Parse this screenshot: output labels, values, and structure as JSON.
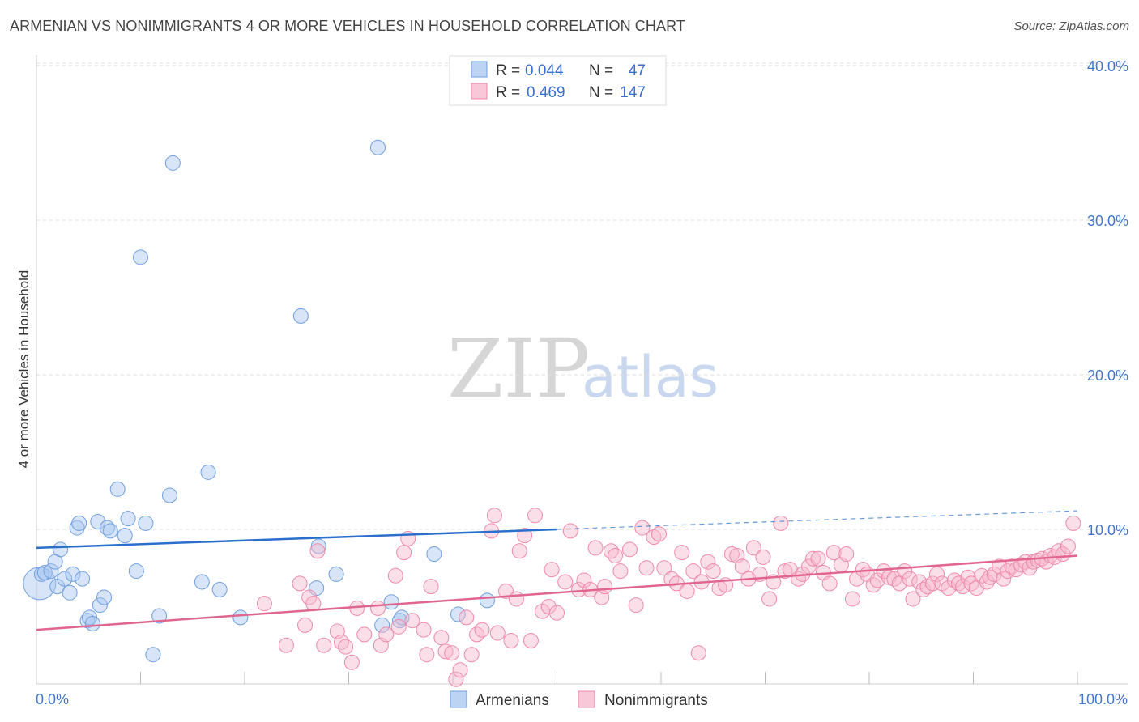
{
  "header": {
    "title": "ARMENIAN VS NONIMMIGRANTS 4 OR MORE VEHICLES IN HOUSEHOLD CORRELATION CHART",
    "source": "Source: ZipAtlas.com"
  },
  "watermark": {
    "zip": "ZIP",
    "atlas": "atlas"
  },
  "legend": {
    "rows": [
      {
        "r_label": "R =",
        "r_value": "0.044",
        "n_label": "N =",
        "n_value": "47"
      },
      {
        "r_label": "R =",
        "r_value": "0.469",
        "n_label": "N =",
        "n_value": "147"
      }
    ]
  },
  "bottom_legend": {
    "items": [
      "Armenians",
      "Nonimmigrants"
    ]
  },
  "chart_data": {
    "type": "scatter",
    "title": "ARMENIAN VS NONIMMIGRANTS 4 OR MORE VEHICLES IN HOUSEHOLD CORRELATION CHART",
    "xlabel": "",
    "ylabel": "4 or more Vehicles in Household",
    "xlim": [
      0,
      100
    ],
    "ylim": [
      0,
      40
    ],
    "x_tick_labels": [
      "0.0%",
      "100.0%"
    ],
    "y_ticks": [
      {
        "value": 10,
        "label": "10.0%"
      },
      {
        "value": 20,
        "label": "20.0%"
      },
      {
        "value": 30,
        "label": "30.0%"
      },
      {
        "value": 40,
        "label": "40.0%"
      }
    ],
    "grid": true,
    "legend_position": "top-center",
    "colors": {
      "armenians": "#6f9fdf",
      "nonimmigrants": "#ee88aa",
      "armenians_line": "#2a6fcc",
      "nonimmigrants_line": "#e06690"
    },
    "series": [
      {
        "name": "Armenians",
        "r": 0.044,
        "n": 47,
        "trend": {
          "x0": 0,
          "y0": 8.8,
          "x1": 50,
          "y1": 10.0,
          "dashed_to": 100,
          "dashed_y": 11.2
        },
        "points": [
          [
            0.3,
            6.5
          ],
          [
            0.5,
            7.1
          ],
          [
            0.8,
            7.2
          ],
          [
            1.4,
            7.3
          ],
          [
            1.8,
            7.9
          ],
          [
            2.0,
            6.3
          ],
          [
            2.3,
            8.7
          ],
          [
            2.7,
            6.8
          ],
          [
            3.2,
            5.9
          ],
          [
            3.5,
            7.1
          ],
          [
            3.9,
            10.1
          ],
          [
            4.1,
            10.4
          ],
          [
            4.4,
            6.8
          ],
          [
            4.9,
            4.1
          ],
          [
            5.1,
            4.3
          ],
          [
            5.4,
            3.9
          ],
          [
            5.9,
            10.5
          ],
          [
            6.1,
            5.1
          ],
          [
            6.5,
            5.6
          ],
          [
            6.8,
            10.1
          ],
          [
            7.1,
            9.9
          ],
          [
            7.8,
            12.6
          ],
          [
            8.5,
            9.6
          ],
          [
            8.8,
            10.7
          ],
          [
            9.6,
            7.3
          ],
          [
            10.0,
            27.6
          ],
          [
            10.5,
            10.4
          ],
          [
            11.2,
            1.9
          ],
          [
            11.8,
            4.4
          ],
          [
            12.8,
            12.2
          ],
          [
            13.1,
            33.7
          ],
          [
            15.9,
            6.6
          ],
          [
            16.5,
            13.7
          ],
          [
            17.6,
            6.1
          ],
          [
            19.6,
            4.3
          ],
          [
            25.4,
            23.8
          ],
          [
            26.9,
            6.2
          ],
          [
            27.1,
            8.9
          ],
          [
            28.8,
            7.1
          ],
          [
            32.8,
            34.7
          ],
          [
            33.2,
            3.8
          ],
          [
            34.1,
            5.3
          ],
          [
            34.9,
            4.1
          ],
          [
            35.1,
            4.3
          ],
          [
            38.2,
            8.4
          ],
          [
            40.5,
            4.5
          ],
          [
            43.3,
            5.4
          ]
        ]
      },
      {
        "name": "Nonimmigrants",
        "r": 0.469,
        "n": 147,
        "trend": {
          "x0": 0,
          "y0": 3.5,
          "x1": 100,
          "y1": 8.3
        },
        "points": [
          [
            21.9,
            5.2
          ],
          [
            24.0,
            2.5
          ],
          [
            25.3,
            6.5
          ],
          [
            25.8,
            3.8
          ],
          [
            26.2,
            5.6
          ],
          [
            26.6,
            5.2
          ],
          [
            27.0,
            8.6
          ],
          [
            27.6,
            2.5
          ],
          [
            28.9,
            3.4
          ],
          [
            29.3,
            2.7
          ],
          [
            29.7,
            2.4
          ],
          [
            30.3,
            1.4
          ],
          [
            30.8,
            4.9
          ],
          [
            31.5,
            3.2
          ],
          [
            32.8,
            4.9
          ],
          [
            33.1,
            2.5
          ],
          [
            33.6,
            3.2
          ],
          [
            34.5,
            7.0
          ],
          [
            34.8,
            3.7
          ],
          [
            35.3,
            8.5
          ],
          [
            35.7,
            9.4
          ],
          [
            36.1,
            4.1
          ],
          [
            37.2,
            3.5
          ],
          [
            37.5,
            1.9
          ],
          [
            37.9,
            6.3
          ],
          [
            38.9,
            3.0
          ],
          [
            39.3,
            2.1
          ],
          [
            39.9,
            2.0
          ],
          [
            40.3,
            0.3
          ],
          [
            40.7,
            0.9
          ],
          [
            41.3,
            4.3
          ],
          [
            41.8,
            1.9
          ],
          [
            42.3,
            3.2
          ],
          [
            42.8,
            3.5
          ],
          [
            43.7,
            9.9
          ],
          [
            44.0,
            10.9
          ],
          [
            44.3,
            3.3
          ],
          [
            45.1,
            6.0
          ],
          [
            45.6,
            2.8
          ],
          [
            46.1,
            5.5
          ],
          [
            46.4,
            8.6
          ],
          [
            46.9,
            9.6
          ],
          [
            47.5,
            2.8
          ],
          [
            47.9,
            10.9
          ],
          [
            48.6,
            4.7
          ],
          [
            49.2,
            5.0
          ],
          [
            49.5,
            7.4
          ],
          [
            50.0,
            4.6
          ],
          [
            50.8,
            6.6
          ],
          [
            51.3,
            9.9
          ],
          [
            52.1,
            6.1
          ],
          [
            52.6,
            6.7
          ],
          [
            53.2,
            6.1
          ],
          [
            53.7,
            8.8
          ],
          [
            54.3,
            5.6
          ],
          [
            54.6,
            6.3
          ],
          [
            55.2,
            8.6
          ],
          [
            55.6,
            8.3
          ],
          [
            56.1,
            7.3
          ],
          [
            57.0,
            8.7
          ],
          [
            57.6,
            5.1
          ],
          [
            58.2,
            10.1
          ],
          [
            58.6,
            7.5
          ],
          [
            59.3,
            9.5
          ],
          [
            59.8,
            9.7
          ],
          [
            60.3,
            7.5
          ],
          [
            61.0,
            6.8
          ],
          [
            61.5,
            6.5
          ],
          [
            62.0,
            8.5
          ],
          [
            62.5,
            6.0
          ],
          [
            63.1,
            7.3
          ],
          [
            63.6,
            2.0
          ],
          [
            63.9,
            6.6
          ],
          [
            64.5,
            7.9
          ],
          [
            65.0,
            7.3
          ],
          [
            65.6,
            6.2
          ],
          [
            66.2,
            6.4
          ],
          [
            66.8,
            8.4
          ],
          [
            67.3,
            8.3
          ],
          [
            67.8,
            7.6
          ],
          [
            68.4,
            6.8
          ],
          [
            68.9,
            8.8
          ],
          [
            69.5,
            7.1
          ],
          [
            69.8,
            8.2
          ],
          [
            70.4,
            5.5
          ],
          [
            70.8,
            6.6
          ],
          [
            71.5,
            10.4
          ],
          [
            71.9,
            7.3
          ],
          [
            72.4,
            7.4
          ],
          [
            73.2,
            6.8
          ],
          [
            73.6,
            7.1
          ],
          [
            74.2,
            7.6
          ],
          [
            74.6,
            8.1
          ],
          [
            75.1,
            8.1
          ],
          [
            75.6,
            7.2
          ],
          [
            76.2,
            6.5
          ],
          [
            76.6,
            8.5
          ],
          [
            77.3,
            7.7
          ],
          [
            77.8,
            8.4
          ],
          [
            78.4,
            5.5
          ],
          [
            78.8,
            6.8
          ],
          [
            79.4,
            7.4
          ],
          [
            79.8,
            7.1
          ],
          [
            80.4,
            6.4
          ],
          [
            80.8,
            6.7
          ],
          [
            81.4,
            7.3
          ],
          [
            81.9,
            6.9
          ],
          [
            82.4,
            6.8
          ],
          [
            82.9,
            6.5
          ],
          [
            83.4,
            7.3
          ],
          [
            83.9,
            6.8
          ],
          [
            84.2,
            5.5
          ],
          [
            84.8,
            6.6
          ],
          [
            85.2,
            6.1
          ],
          [
            85.6,
            6.3
          ],
          [
            86.1,
            6.5
          ],
          [
            86.5,
            7.1
          ],
          [
            87.0,
            6.5
          ],
          [
            87.6,
            6.2
          ],
          [
            88.2,
            6.7
          ],
          [
            88.6,
            6.5
          ],
          [
            89.0,
            6.3
          ],
          [
            89.5,
            6.9
          ],
          [
            89.8,
            6.5
          ],
          [
            90.3,
            6.2
          ],
          [
            90.8,
            7.0
          ],
          [
            91.3,
            6.6
          ],
          [
            91.6,
            6.9
          ],
          [
            92.0,
            7.1
          ],
          [
            92.5,
            7.6
          ],
          [
            92.9,
            6.8
          ],
          [
            93.3,
            7.3
          ],
          [
            93.7,
            7.6
          ],
          [
            94.1,
            7.4
          ],
          [
            94.6,
            7.7
          ],
          [
            95.0,
            7.9
          ],
          [
            95.4,
            7.5
          ],
          [
            95.8,
            7.9
          ],
          [
            96.2,
            8.0
          ],
          [
            96.6,
            8.1
          ],
          [
            97.0,
            7.9
          ],
          [
            97.4,
            8.3
          ],
          [
            97.8,
            8.2
          ],
          [
            98.2,
            8.6
          ],
          [
            98.6,
            8.4
          ],
          [
            99.1,
            8.9
          ],
          [
            99.6,
            10.4
          ]
        ]
      }
    ]
  }
}
